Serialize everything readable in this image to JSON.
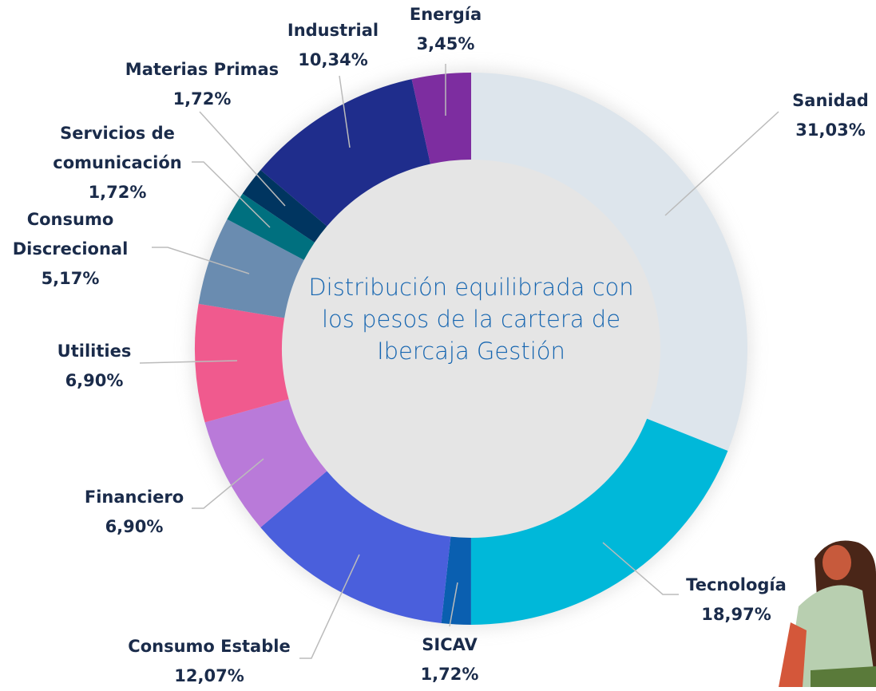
{
  "chart_data": {
    "type": "donut",
    "center_text": "Distribución equilibrada con los pesos de la cartera de Ibercaja Gestión",
    "categories": [
      "Sanidad",
      "Tecnología",
      "SICAV",
      "Consumo Estable",
      "Financiero",
      "Utilities",
      "Consumo Discrecional",
      "Servicios de comunicación",
      "Materias Primas",
      "Industrial",
      "Energía"
    ],
    "values": [
      31.03,
      18.97,
      1.72,
      12.07,
      6.9,
      6.9,
      5.17,
      1.72,
      1.72,
      10.34,
      3.45
    ],
    "value_labels": [
      "31,03%",
      "18,97%",
      "1,72%",
      "12,07%",
      "6,90%",
      "6,90%",
      "5,17%",
      "1,72%",
      "1,72%",
      "10,34%",
      "3,45%"
    ],
    "colors": [
      "#dde5ec",
      "#00b8d9",
      "#0a5fb0",
      "#4a5fdc",
      "#b97ad9",
      "#f05a8e",
      "#6a8cb0",
      "#00707f",
      "#003560",
      "#1f2d8c",
      "#7d2da0"
    ]
  }
}
